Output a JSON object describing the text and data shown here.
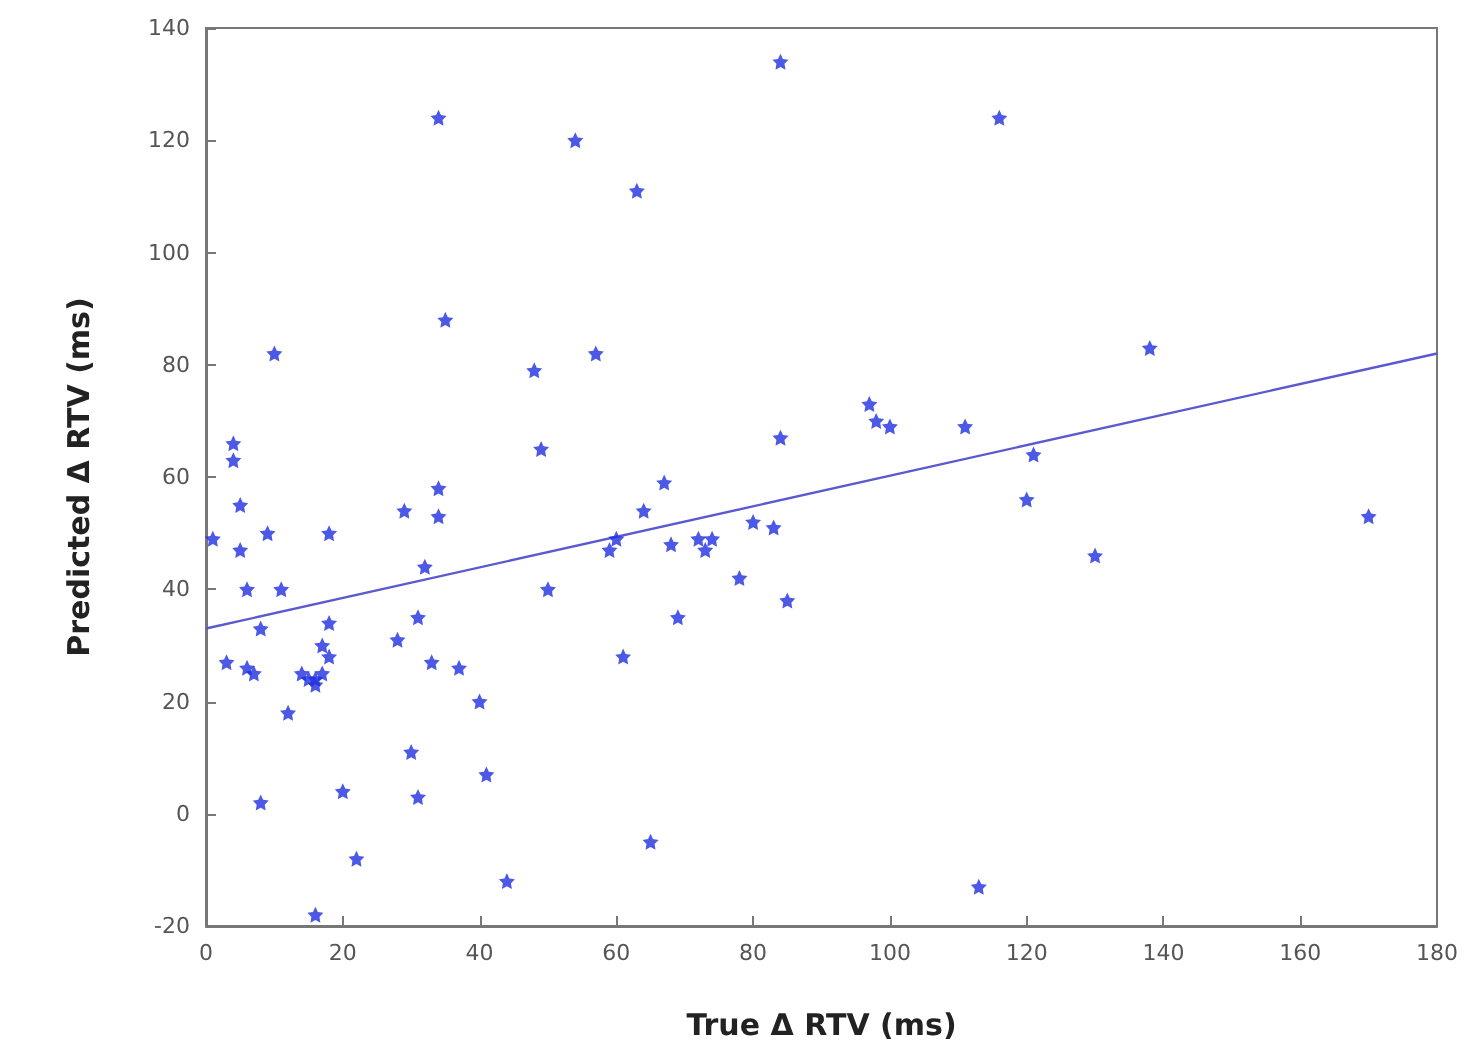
{
  "chart_data": {
    "type": "scatter",
    "xlabel": "True Δ RTV (ms)",
    "ylabel": "Predicted Δ RTV (ms)",
    "xlim": [
      0,
      180
    ],
    "xticks": [
      0,
      20,
      40,
      60,
      80,
      100,
      120,
      140,
      160,
      180
    ],
    "ylim": [
      -20,
      140
    ],
    "yticks": [
      -20,
      0,
      20,
      40,
      60,
      80,
      100,
      120,
      140
    ],
    "grid": false,
    "marker": "star",
    "series": [
      {
        "color": "#1f2fe0",
        "x": [
          1,
          3,
          4,
          4,
          5,
          5,
          6,
          6,
          7,
          8,
          8,
          9,
          10,
          11,
          12,
          14,
          15,
          16,
          16,
          17,
          16,
          17,
          18,
          18,
          18,
          20,
          22,
          28,
          29,
          30,
          31,
          31,
          32,
          33,
          34,
          34,
          34,
          35,
          37,
          40,
          41,
          44,
          48,
          49,
          50,
          54,
          57,
          59,
          60,
          61,
          63,
          64,
          65,
          67,
          68,
          69,
          72,
          73,
          74,
          78,
          80,
          83,
          84,
          84,
          85,
          97,
          98,
          100,
          111,
          113,
          116,
          120,
          121,
          130,
          138,
          170
        ],
        "values": [
          49,
          27,
          66,
          63,
          55,
          47,
          40,
          26,
          25,
          2,
          33,
          50,
          82,
          40,
          18,
          25,
          24,
          24,
          23,
          25,
          -18,
          30,
          28,
          34,
          50,
          4,
          -8,
          31,
          54,
          11,
          35,
          3,
          44,
          27,
          124,
          53,
          58,
          88,
          26,
          20,
          7,
          -12,
          79,
          65,
          40,
          120,
          82,
          47,
          49,
          28,
          111,
          54,
          -5,
          59,
          48,
          35,
          49,
          47,
          49,
          42,
          52,
          51,
          67,
          134,
          38,
          73,
          70,
          69,
          69,
          -13,
          124,
          56,
          64,
          46,
          83,
          53
        ]
      },
      {
        "type": "line",
        "color": "#5a5ad0",
        "x": [
          0,
          180
        ],
        "values": [
          33,
          82
        ],
        "marker": "none",
        "line_style": "solid"
      }
    ]
  }
}
